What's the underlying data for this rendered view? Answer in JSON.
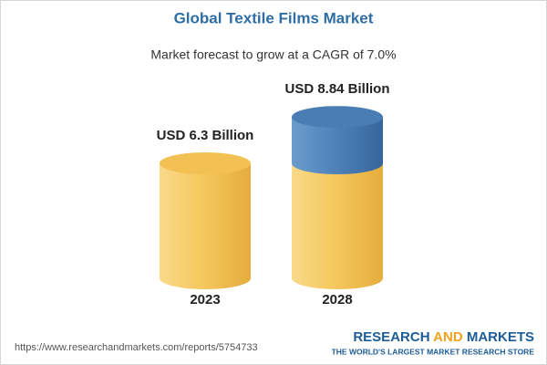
{
  "chart_data": {
    "type": "bar",
    "title": "Global Textile Films Market",
    "subtitle": "Market forecast to grow at a CAGR of 7.0%",
    "categories": [
      "2023",
      "2028"
    ],
    "values": [
      6.3,
      8.84
    ],
    "value_labels": [
      "USD 6.3 Billion",
      "USD 8.84 Billion"
    ],
    "color": "#f3c153",
    "growth_color": "#4a7db3"
  },
  "footer": {
    "url": "https://www.researchandmarkets.com/reports/5754733",
    "brand": [
      "RESEARCH",
      "AND",
      "MARKETS"
    ],
    "tagline": "THE WORLD'S LARGEST MARKET RESEARCH STORE"
  }
}
